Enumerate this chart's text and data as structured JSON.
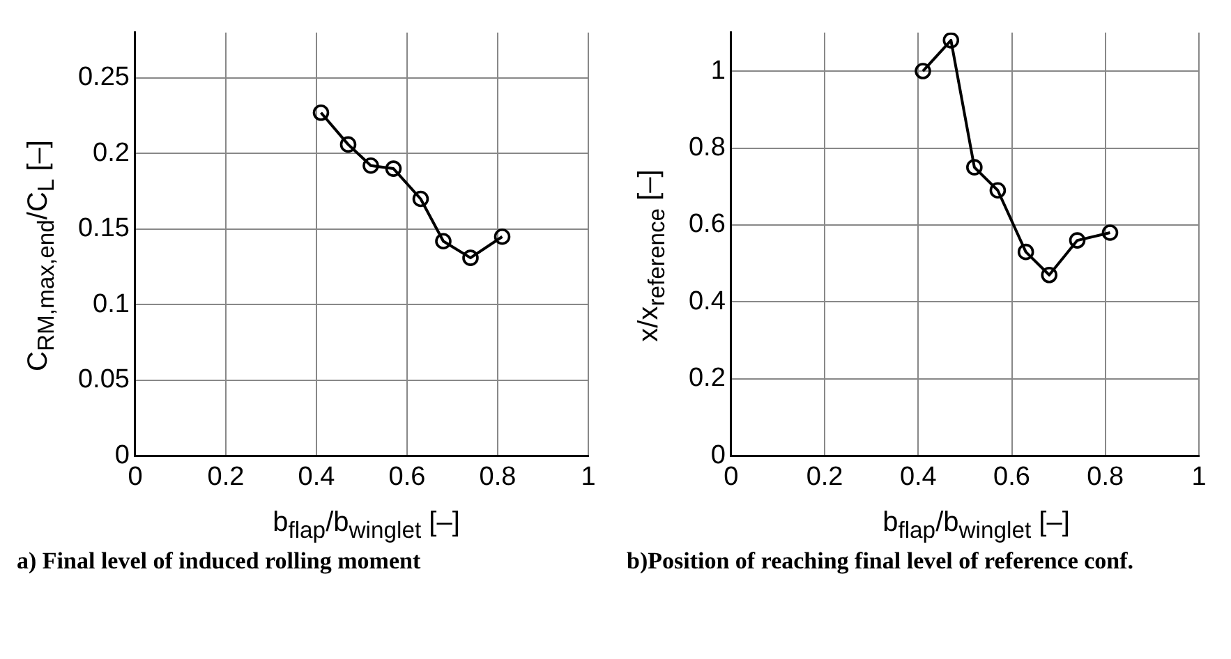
{
  "chart_data": [
    {
      "type": "line",
      "title": "a) Final level of induced rolling moment",
      "xlabel": "b$_{flap}$/b$_{winglet}$ [–]",
      "ylabel": "C$_{RM,max,end}$/C$_{L}$ [–]",
      "x": [
        0.41,
        0.47,
        0.52,
        0.57,
        0.63,
        0.68,
        0.74,
        0.81
      ],
      "series": [
        {
          "color": "#000000",
          "values": [
            0.227,
            0.206,
            0.192,
            0.19,
            0.17,
            0.142,
            0.131,
            0.145
          ]
        }
      ],
      "xlim": [
        0,
        1
      ],
      "xticks": [
        0,
        0.2,
        0.4,
        0.6,
        0.8,
        1
      ],
      "ylim": [
        0,
        0.28
      ],
      "yticks": [
        0,
        0.05,
        0.1,
        0.15,
        0.2,
        0.25
      ],
      "grid": true,
      "marker": "circle",
      "line_style": "solid"
    },
    {
      "type": "line",
      "title": "b)Position of reaching final level of reference conf.",
      "xlabel": "b$_{flap}$/b$_{winglet}$ [–]",
      "ylabel": "x/x$_{reference}$ [–]",
      "x": [
        0.41,
        0.47,
        0.52,
        0.57,
        0.63,
        0.68,
        0.74,
        0.81
      ],
      "series": [
        {
          "color": "#000000",
          "values": [
            1.0,
            1.08,
            0.75,
            0.69,
            0.53,
            0.47,
            0.56,
            0.58
          ]
        }
      ],
      "xlim": [
        0,
        1
      ],
      "xticks": [
        0,
        0.2,
        0.4,
        0.6,
        0.8,
        1
      ],
      "ylim": [
        0,
        1.1
      ],
      "yticks": [
        0,
        0.2,
        0.4,
        0.6,
        0.8,
        1
      ],
      "grid": true,
      "marker": "circle",
      "line_style": "solid"
    }
  ]
}
